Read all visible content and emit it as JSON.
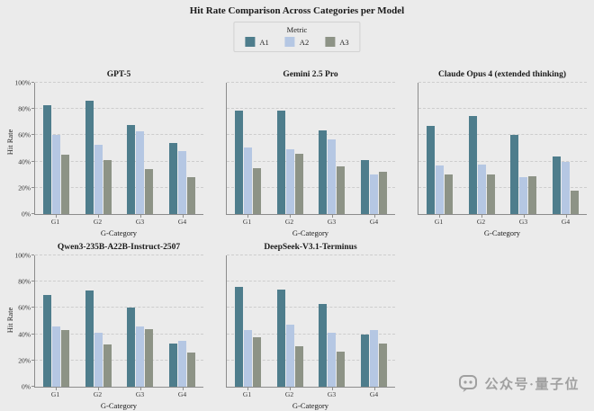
{
  "title": "Hit Rate Comparison Across Categories per Model",
  "legend": {
    "title": "Metric",
    "entries": [
      {
        "label": "A1",
        "color": "#4e7d8c"
      },
      {
        "label": "A2",
        "color": "#b5c7e3"
      },
      {
        "label": "A3",
        "color": "#8d9386"
      }
    ]
  },
  "labels": {
    "xlabel": "G-Category",
    "ylabel": "Hit Rate"
  },
  "axis": {
    "yticks": [
      "0%",
      "20%",
      "40%",
      "60%",
      "80%",
      "100%"
    ],
    "yvalues": [
      0,
      20,
      40,
      60,
      80,
      100
    ],
    "ylim": [
      0,
      100
    ],
    "grid": "dashed"
  },
  "watermark": {
    "text": "公众号·量子位"
  },
  "colors": {
    "background": "#ebebeb",
    "a1": "#4e7d8c",
    "a2": "#b5c7e3",
    "a3": "#8d9386"
  },
  "chart_data": [
    {
      "type": "bar",
      "title": "GPT-5",
      "categories": [
        "G1",
        "G2",
        "G3",
        "G4"
      ],
      "yticklabels": true,
      "series": [
        {
          "name": "A1",
          "values": [
            83,
            86,
            68,
            54
          ]
        },
        {
          "name": "A2",
          "values": [
            60,
            53,
            63,
            48
          ]
        },
        {
          "name": "A3",
          "values": [
            45,
            41,
            34,
            28
          ]
        }
      ]
    },
    {
      "type": "bar",
      "title": "Gemini 2.5 Pro",
      "categories": [
        "G1",
        "G2",
        "G3",
        "G4"
      ],
      "yticklabels": false,
      "series": [
        {
          "name": "A1",
          "values": [
            79,
            79,
            64,
            41
          ]
        },
        {
          "name": "A2",
          "values": [
            51,
            49,
            57,
            30
          ]
        },
        {
          "name": "A3",
          "values": [
            35,
            46,
            36,
            32
          ]
        }
      ]
    },
    {
      "type": "bar",
      "title": "Claude Opus 4 (extended thinking)",
      "categories": [
        "G1",
        "G2",
        "G3",
        "G4"
      ],
      "yticklabels": false,
      "series": [
        {
          "name": "A1",
          "values": [
            67,
            75,
            60,
            44
          ]
        },
        {
          "name": "A2",
          "values": [
            37,
            38,
            28,
            40
          ]
        },
        {
          "name": "A3",
          "values": [
            30,
            30,
            29,
            18
          ]
        }
      ]
    },
    {
      "type": "bar",
      "title": "Qwen3-235B-A22B-Instruct-2507",
      "categories": [
        "G1",
        "G2",
        "G3",
        "G4"
      ],
      "yticklabels": true,
      "series": [
        {
          "name": "A1",
          "values": [
            70,
            73,
            60,
            33
          ]
        },
        {
          "name": "A2",
          "values": [
            46,
            41,
            46,
            35
          ]
        },
        {
          "name": "A3",
          "values": [
            43,
            32,
            44,
            26
          ]
        }
      ]
    },
    {
      "type": "bar",
      "title": "DeepSeek-V3.1-Terminus",
      "categories": [
        "G1",
        "G2",
        "G3",
        "G4"
      ],
      "yticklabels": false,
      "series": [
        {
          "name": "A1",
          "values": [
            76,
            74,
            63,
            40
          ]
        },
        {
          "name": "A2",
          "values": [
            43,
            47,
            41,
            43
          ]
        },
        {
          "name": "A3",
          "values": [
            38,
            31,
            27,
            33
          ]
        }
      ]
    }
  ]
}
